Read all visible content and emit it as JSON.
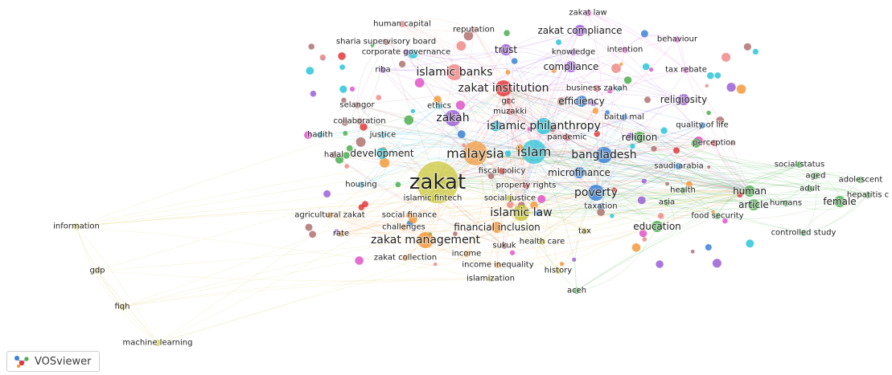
{
  "app": {
    "brand": "VOSviewer",
    "colors": {
      "red": "#e3383c",
      "green": "#4caf50",
      "blue": "#3b82d6",
      "yellow": "#c9c83a",
      "purple": "#9b5fd6",
      "cyan": "#2cc5d8",
      "orange": "#f39a3b",
      "brown": "#b07272",
      "pink": "#e055c8",
      "salmon": "#f08a8a",
      "olive": "#d8d36a"
    }
  },
  "network": {
    "terms": [
      {
        "label": "zakat law",
        "cluster": "pink",
        "weight": 1
      },
      {
        "label": "human capital",
        "cluster": "salmon",
        "weight": 1
      },
      {
        "label": "reputation",
        "cluster": "salmon",
        "weight": 1
      },
      {
        "label": "zakat compliance",
        "cluster": "purple",
        "weight": 2
      },
      {
        "label": "behaviour",
        "cluster": "pink",
        "weight": 1
      },
      {
        "label": "sharia supervisory board",
        "cluster": "brown",
        "weight": 1
      },
      {
        "label": "trust",
        "cluster": "purple",
        "weight": 2
      },
      {
        "label": "knowledge",
        "cluster": "purple",
        "weight": 1
      },
      {
        "label": "intention",
        "cluster": "pink",
        "weight": 1
      },
      {
        "label": "corporate governance",
        "cluster": "purple",
        "weight": 1
      },
      {
        "label": "compliance",
        "cluster": "purple",
        "weight": 2
      },
      {
        "label": "riba",
        "cluster": "purple",
        "weight": 1
      },
      {
        "label": "islamic banks",
        "cluster": "salmon",
        "weight": 3
      },
      {
        "label": "tax rebate",
        "cluster": "pink",
        "weight": 1
      },
      {
        "label": "zakat institution",
        "cluster": "red",
        "weight": 3
      },
      {
        "label": "business zakah",
        "cluster": "red",
        "weight": 1
      },
      {
        "label": "efficiency",
        "cluster": "blue",
        "weight": 2
      },
      {
        "label": "religiosity",
        "cluster": "purple",
        "weight": 2
      },
      {
        "label": "selangor",
        "cluster": "brown",
        "weight": 1
      },
      {
        "label": "ethics",
        "cluster": "cyan",
        "weight": 1
      },
      {
        "label": "gcc",
        "cluster": "red",
        "weight": 1
      },
      {
        "label": "muzakki",
        "cluster": "red",
        "weight": 1
      },
      {
        "label": "baitul mal",
        "cluster": "blue",
        "weight": 1
      },
      {
        "label": "collaboration",
        "cluster": "brown",
        "weight": 1
      },
      {
        "label": "zakah",
        "cluster": "purple",
        "weight": 3
      },
      {
        "label": "islamic philanthropy",
        "cluster": "cyan",
        "weight": 3
      },
      {
        "label": "quality of life",
        "cluster": "blue",
        "weight": 1
      },
      {
        "label": "hadith",
        "cluster": "cyan",
        "weight": 1
      },
      {
        "label": "justice",
        "cluster": "cyan",
        "weight": 1
      },
      {
        "label": "pandemic",
        "cluster": "red",
        "weight": 1
      },
      {
        "label": "religion",
        "cluster": "green",
        "weight": 2
      },
      {
        "label": "perception",
        "cluster": "red",
        "weight": 1
      },
      {
        "label": "halal",
        "cluster": "brown",
        "weight": 1
      },
      {
        "label": "development",
        "cluster": "cyan",
        "weight": 2
      },
      {
        "label": "malaysia",
        "cluster": "orange",
        "weight": 4
      },
      {
        "label": "islam",
        "cluster": "cyan",
        "weight": 4
      },
      {
        "label": "bangladesh",
        "cluster": "blue",
        "weight": 3
      },
      {
        "label": "saudi arabia",
        "cluster": "blue",
        "weight": 1
      },
      {
        "label": "social status",
        "cluster": "green",
        "weight": 1
      },
      {
        "label": "fiscal policy",
        "cluster": "red",
        "weight": 1
      },
      {
        "label": "microfinance",
        "cluster": "blue",
        "weight": 2
      },
      {
        "label": "aged",
        "cluster": "green",
        "weight": 1
      },
      {
        "label": "adolescent",
        "cluster": "green",
        "weight": 1
      },
      {
        "label": "zakat",
        "cluster": "yellow",
        "weight": 5
      },
      {
        "label": "housing",
        "cluster": "cyan",
        "weight": 1
      },
      {
        "label": "property rights",
        "cluster": "red",
        "weight": 1
      },
      {
        "label": "adult",
        "cluster": "green",
        "weight": 1
      },
      {
        "label": "health",
        "cluster": "green",
        "weight": 1
      },
      {
        "label": "human",
        "cluster": "green",
        "weight": 2
      },
      {
        "label": "hepatitis c",
        "cluster": "green",
        "weight": 1
      },
      {
        "label": "islamic fintech",
        "cluster": "yellow",
        "weight": 1
      },
      {
        "label": "social justice",
        "cluster": "yellow",
        "weight": 1
      },
      {
        "label": "poverty",
        "cluster": "blue",
        "weight": 3
      },
      {
        "label": "asia",
        "cluster": "green",
        "weight": 1
      },
      {
        "label": "article",
        "cluster": "green",
        "weight": 2
      },
      {
        "label": "humans",
        "cluster": "green",
        "weight": 1
      },
      {
        "label": "female",
        "cluster": "green",
        "weight": 2
      },
      {
        "label": "taxation",
        "cluster": "blue",
        "weight": 1
      },
      {
        "label": "agricultural zakat",
        "cluster": "orange",
        "weight": 1
      },
      {
        "label": "social finance",
        "cluster": "orange",
        "weight": 1
      },
      {
        "label": "islamic law",
        "cluster": "yellow",
        "weight": 3
      },
      {
        "label": "food security",
        "cluster": "green",
        "weight": 1
      },
      {
        "label": "information",
        "cluster": "olive",
        "weight": 1
      },
      {
        "label": "challenges",
        "cluster": "orange",
        "weight": 1
      },
      {
        "label": "financial inclusion",
        "cluster": "orange",
        "weight": 2
      },
      {
        "label": "education",
        "cluster": "green",
        "weight": 2
      },
      {
        "label": "rate",
        "cluster": "orange",
        "weight": 1
      },
      {
        "label": "tax",
        "cluster": "yellow",
        "weight": 1
      },
      {
        "label": "controlled study",
        "cluster": "green",
        "weight": 1
      },
      {
        "label": "zakat management",
        "cluster": "orange",
        "weight": 3
      },
      {
        "label": "health care",
        "cluster": "yellow",
        "weight": 1
      },
      {
        "label": "sukuk",
        "cluster": "brown",
        "weight": 1
      },
      {
        "label": "income",
        "cluster": "orange",
        "weight": 1
      },
      {
        "label": "zakat collection",
        "cluster": "orange",
        "weight": 1
      },
      {
        "label": "income inequality",
        "cluster": "orange",
        "weight": 1
      },
      {
        "label": "history",
        "cluster": "yellow",
        "weight": 1
      },
      {
        "label": "gdp",
        "cluster": "olive",
        "weight": 1
      },
      {
        "label": "islamization",
        "cluster": "olive",
        "weight": 1
      },
      {
        "label": "aceh",
        "cluster": "green",
        "weight": 1
      },
      {
        "label": "fiqh",
        "cluster": "olive",
        "weight": 1
      },
      {
        "label": "machine learning",
        "cluster": "olive",
        "weight": 1
      }
    ]
  }
}
